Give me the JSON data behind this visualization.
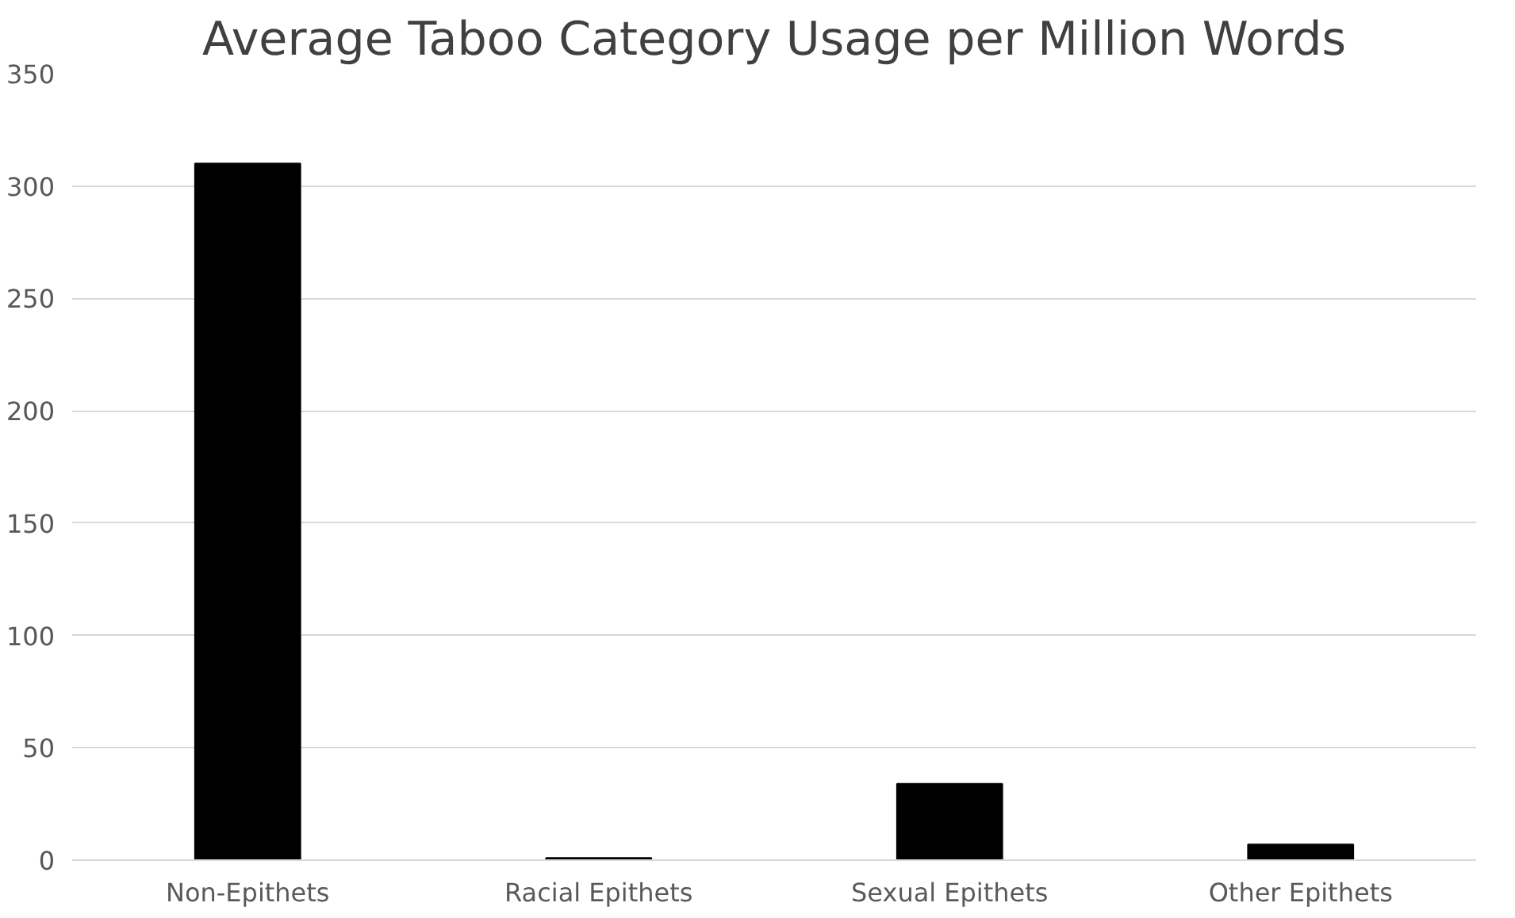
{
  "chart_data": {
    "type": "bar",
    "title": "Average Taboo Category Usage per Million Words",
    "categories": [
      "Non-Epithets",
      "Racial Epithets",
      "Sexual Epithets",
      "Other Epithets"
    ],
    "values": [
      310,
      1,
      34,
      7
    ],
    "color": "#000000",
    "ylim": [
      0,
      350
    ],
    "yticks": [
      0,
      50,
      100,
      150,
      200,
      250,
      300,
      350
    ],
    "grid": "y"
  }
}
